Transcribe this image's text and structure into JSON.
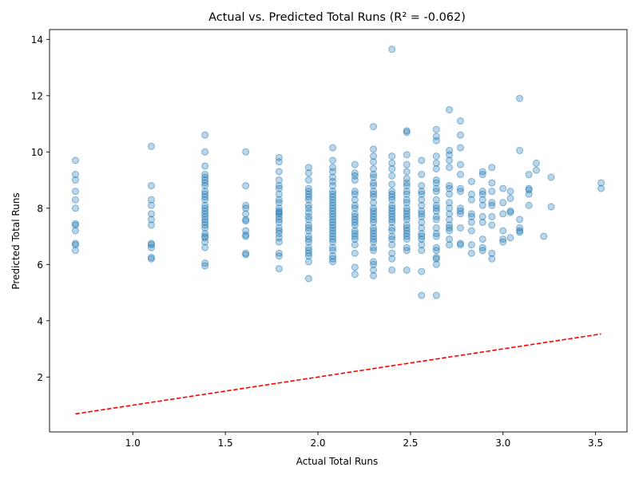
{
  "chart_data": {
    "type": "scatter",
    "title": "Actual vs. Predicted Total Runs (R² = -0.062)",
    "xlabel": "Actual Total Runs",
    "ylabel": "Predicted Total Runs",
    "xlim": [
      0.55,
      3.67
    ],
    "ylim": [
      0.05,
      14.35
    ],
    "xticks": [
      1.0,
      1.5,
      2.0,
      2.5,
      3.0,
      3.5
    ],
    "xtick_labels": [
      "1.0",
      "1.5",
      "2.0",
      "2.5",
      "3.0",
      "3.5"
    ],
    "yticks": [
      2,
      4,
      6,
      8,
      10,
      12,
      14
    ],
    "ytick_labels": [
      "2",
      "4",
      "6",
      "8",
      "10",
      "12",
      "14"
    ],
    "grid": false,
    "point_color": "#1f77b4",
    "reference_line": {
      "x": [
        0.69,
        3.53
      ],
      "y": [
        0.69,
        3.53
      ],
      "color": "#ff0000",
      "style": "dashed"
    },
    "points": [
      [
        0.69,
        9.7
      ],
      [
        0.69,
        9.2
      ],
      [
        0.69,
        9.0
      ],
      [
        0.69,
        8.6
      ],
      [
        0.69,
        8.3
      ],
      [
        0.69,
        8.0
      ],
      [
        0.69,
        7.45
      ],
      [
        0.69,
        7.4
      ],
      [
        0.69,
        7.2
      ],
      [
        0.69,
        6.75
      ],
      [
        0.69,
        6.7
      ],
      [
        0.69,
        6.5
      ],
      [
        1.1,
        10.2
      ],
      [
        1.1,
        8.8
      ],
      [
        1.1,
        8.3
      ],
      [
        1.1,
        8.1
      ],
      [
        1.1,
        7.8
      ],
      [
        1.1,
        7.6
      ],
      [
        1.1,
        7.4
      ],
      [
        1.1,
        6.75
      ],
      [
        1.1,
        6.7
      ],
      [
        1.1,
        6.6
      ],
      [
        1.1,
        6.25
      ],
      [
        1.1,
        6.2
      ],
      [
        1.39,
        10.6
      ],
      [
        1.39,
        10.0
      ],
      [
        1.39,
        9.5
      ],
      [
        1.39,
        9.2
      ],
      [
        1.39,
        9.1
      ],
      [
        1.39,
        9.0
      ],
      [
        1.39,
        8.9
      ],
      [
        1.39,
        8.8
      ],
      [
        1.39,
        8.6
      ],
      [
        1.39,
        8.5
      ],
      [
        1.39,
        8.4
      ],
      [
        1.39,
        8.3
      ],
      [
        1.39,
        8.1
      ],
      [
        1.39,
        8.0
      ],
      [
        1.39,
        7.9
      ],
      [
        1.39,
        7.8
      ],
      [
        1.39,
        7.7
      ],
      [
        1.39,
        7.6
      ],
      [
        1.39,
        7.5
      ],
      [
        1.39,
        7.4
      ],
      [
        1.39,
        7.3
      ],
      [
        1.39,
        7.1
      ],
      [
        1.39,
        7.0
      ],
      [
        1.39,
        6.95
      ],
      [
        1.39,
        6.8
      ],
      [
        1.39,
        6.6
      ],
      [
        1.39,
        6.05
      ],
      [
        1.39,
        5.95
      ],
      [
        1.61,
        10.0
      ],
      [
        1.61,
        8.8
      ],
      [
        1.61,
        8.1
      ],
      [
        1.61,
        8.0
      ],
      [
        1.61,
        7.8
      ],
      [
        1.61,
        7.6
      ],
      [
        1.61,
        7.55
      ],
      [
        1.61,
        7.2
      ],
      [
        1.61,
        7.05
      ],
      [
        1.61,
        7.0
      ],
      [
        1.61,
        6.4
      ],
      [
        1.61,
        6.35
      ],
      [
        1.79,
        9.8
      ],
      [
        1.79,
        9.65
      ],
      [
        1.79,
        9.3
      ],
      [
        1.79,
        9.0
      ],
      [
        1.79,
        8.8
      ],
      [
        1.79,
        8.7
      ],
      [
        1.79,
        8.5
      ],
      [
        1.79,
        8.3
      ],
      [
        1.79,
        8.2
      ],
      [
        1.79,
        8.0
      ],
      [
        1.79,
        7.9
      ],
      [
        1.79,
        7.85
      ],
      [
        1.79,
        7.8
      ],
      [
        1.79,
        7.7
      ],
      [
        1.79,
        7.6
      ],
      [
        1.79,
        7.5
      ],
      [
        1.79,
        7.3
      ],
      [
        1.79,
        7.2
      ],
      [
        1.79,
        7.1
      ],
      [
        1.79,
        6.95
      ],
      [
        1.79,
        6.8
      ],
      [
        1.79,
        6.4
      ],
      [
        1.79,
        6.3
      ],
      [
        1.79,
        5.85
      ],
      [
        1.95,
        9.45
      ],
      [
        1.95,
        9.25
      ],
      [
        1.95,
        9.0
      ],
      [
        1.95,
        8.7
      ],
      [
        1.95,
        8.6
      ],
      [
        1.95,
        8.5
      ],
      [
        1.95,
        8.4
      ],
      [
        1.95,
        8.3
      ],
      [
        1.95,
        8.1
      ],
      [
        1.95,
        8.0
      ],
      [
        1.95,
        7.85
      ],
      [
        1.95,
        7.7
      ],
      [
        1.95,
        7.6
      ],
      [
        1.95,
        7.4
      ],
      [
        1.95,
        7.3
      ],
      [
        1.95,
        7.2
      ],
      [
        1.95,
        7.0
      ],
      [
        1.95,
        6.9
      ],
      [
        1.95,
        6.8
      ],
      [
        1.95,
        6.6
      ],
      [
        1.95,
        6.5
      ],
      [
        1.95,
        6.4
      ],
      [
        1.95,
        6.3
      ],
      [
        1.95,
        6.1
      ],
      [
        1.95,
        5.5
      ],
      [
        2.08,
        10.15
      ],
      [
        2.08,
        9.7
      ],
      [
        2.08,
        9.45
      ],
      [
        2.08,
        9.3
      ],
      [
        2.08,
        9.1
      ],
      [
        2.08,
        8.95
      ],
      [
        2.08,
        8.8
      ],
      [
        2.08,
        8.6
      ],
      [
        2.08,
        8.5
      ],
      [
        2.08,
        8.4
      ],
      [
        2.08,
        8.3
      ],
      [
        2.08,
        8.2
      ],
      [
        2.08,
        8.1
      ],
      [
        2.08,
        8.0
      ],
      [
        2.08,
        7.9
      ],
      [
        2.08,
        7.8
      ],
      [
        2.08,
        7.7
      ],
      [
        2.08,
        7.6
      ],
      [
        2.08,
        7.5
      ],
      [
        2.08,
        7.4
      ],
      [
        2.08,
        7.3
      ],
      [
        2.08,
        7.2
      ],
      [
        2.08,
        7.1
      ],
      [
        2.08,
        7.0
      ],
      [
        2.08,
        6.9
      ],
      [
        2.08,
        6.8
      ],
      [
        2.08,
        6.6
      ],
      [
        2.08,
        6.5
      ],
      [
        2.08,
        6.3
      ],
      [
        2.08,
        6.2
      ],
      [
        2.08,
        6.1
      ],
      [
        2.2,
        9.55
      ],
      [
        2.2,
        9.25
      ],
      [
        2.2,
        9.15
      ],
      [
        2.2,
        9.0
      ],
      [
        2.2,
        8.6
      ],
      [
        2.2,
        8.5
      ],
      [
        2.2,
        8.3
      ],
      [
        2.2,
        8.1
      ],
      [
        2.2,
        8.0
      ],
      [
        2.2,
        7.8
      ],
      [
        2.2,
        7.7
      ],
      [
        2.2,
        7.6
      ],
      [
        2.2,
        7.5
      ],
      [
        2.2,
        7.4
      ],
      [
        2.2,
        7.2
      ],
      [
        2.2,
        7.1
      ],
      [
        2.2,
        7.0
      ],
      [
        2.2,
        6.9
      ],
      [
        2.2,
        6.7
      ],
      [
        2.2,
        6.4
      ],
      [
        2.2,
        5.9
      ],
      [
        2.2,
        5.65
      ],
      [
        2.3,
        10.9
      ],
      [
        2.3,
        10.1
      ],
      [
        2.3,
        9.85
      ],
      [
        2.3,
        9.65
      ],
      [
        2.3,
        9.4
      ],
      [
        2.3,
        9.2
      ],
      [
        2.3,
        9.1
      ],
      [
        2.3,
        8.9
      ],
      [
        2.3,
        8.8
      ],
      [
        2.3,
        8.6
      ],
      [
        2.3,
        8.5
      ],
      [
        2.3,
        8.4
      ],
      [
        2.3,
        8.2
      ],
      [
        2.3,
        8.0
      ],
      [
        2.3,
        7.9
      ],
      [
        2.3,
        7.8
      ],
      [
        2.3,
        7.7
      ],
      [
        2.3,
        7.6
      ],
      [
        2.3,
        7.5
      ],
      [
        2.3,
        7.3
      ],
      [
        2.3,
        7.2
      ],
      [
        2.3,
        7.1
      ],
      [
        2.3,
        7.0
      ],
      [
        2.3,
        6.9
      ],
      [
        2.3,
        6.8
      ],
      [
        2.3,
        6.6
      ],
      [
        2.3,
        6.5
      ],
      [
        2.3,
        6.1
      ],
      [
        2.3,
        6.0
      ],
      [
        2.3,
        5.8
      ],
      [
        2.3,
        5.6
      ],
      [
        2.4,
        13.65
      ],
      [
        2.4,
        9.85
      ],
      [
        2.4,
        9.6
      ],
      [
        2.4,
        9.4
      ],
      [
        2.4,
        9.15
      ],
      [
        2.4,
        8.85
      ],
      [
        2.4,
        8.6
      ],
      [
        2.4,
        8.5
      ],
      [
        2.4,
        8.4
      ],
      [
        2.4,
        8.3
      ],
      [
        2.4,
        8.1
      ],
      [
        2.4,
        8.0
      ],
      [
        2.4,
        7.9
      ],
      [
        2.4,
        7.8
      ],
      [
        2.4,
        7.7
      ],
      [
        2.4,
        7.6
      ],
      [
        2.4,
        7.5
      ],
      [
        2.4,
        7.3
      ],
      [
        2.4,
        7.2
      ],
      [
        2.4,
        7.0
      ],
      [
        2.4,
        6.9
      ],
      [
        2.4,
        6.7
      ],
      [
        2.4,
        6.4
      ],
      [
        2.4,
        6.2
      ],
      [
        2.4,
        5.8
      ],
      [
        2.48,
        10.75
      ],
      [
        2.48,
        10.7
      ],
      [
        2.48,
        9.9
      ],
      [
        2.48,
        9.55
      ],
      [
        2.48,
        9.3
      ],
      [
        2.48,
        9.05
      ],
      [
        2.48,
        8.9
      ],
      [
        2.48,
        8.8
      ],
      [
        2.48,
        8.6
      ],
      [
        2.48,
        8.5
      ],
      [
        2.48,
        8.3
      ],
      [
        2.48,
        8.2
      ],
      [
        2.48,
        8.0
      ],
      [
        2.48,
        7.9
      ],
      [
        2.48,
        7.8
      ],
      [
        2.48,
        7.7
      ],
      [
        2.48,
        7.6
      ],
      [
        2.48,
        7.4
      ],
      [
        2.48,
        7.3
      ],
      [
        2.48,
        7.2
      ],
      [
        2.48,
        7.1
      ],
      [
        2.48,
        7.0
      ],
      [
        2.48,
        6.9
      ],
      [
        2.48,
        6.6
      ],
      [
        2.48,
        6.5
      ],
      [
        2.48,
        5.8
      ],
      [
        2.56,
        9.7
      ],
      [
        2.56,
        9.2
      ],
      [
        2.56,
        8.8
      ],
      [
        2.56,
        8.6
      ],
      [
        2.56,
        8.5
      ],
      [
        2.56,
        8.3
      ],
      [
        2.56,
        8.1
      ],
      [
        2.56,
        7.9
      ],
      [
        2.56,
        7.8
      ],
      [
        2.56,
        7.7
      ],
      [
        2.56,
        7.5
      ],
      [
        2.56,
        7.3
      ],
      [
        2.56,
        7.1
      ],
      [
        2.56,
        7.0
      ],
      [
        2.56,
        6.9
      ],
      [
        2.56,
        6.7
      ],
      [
        2.56,
        6.5
      ],
      [
        2.56,
        5.75
      ],
      [
        2.56,
        4.9
      ],
      [
        2.64,
        10.8
      ],
      [
        2.64,
        10.55
      ],
      [
        2.64,
        10.4
      ],
      [
        2.64,
        9.85
      ],
      [
        2.64,
        9.6
      ],
      [
        2.64,
        9.4
      ],
      [
        2.64,
        9.0
      ],
      [
        2.64,
        8.9
      ],
      [
        2.64,
        8.7
      ],
      [
        2.64,
        8.6
      ],
      [
        2.64,
        8.3
      ],
      [
        2.64,
        8.1
      ],
      [
        2.64,
        8.0
      ],
      [
        2.64,
        7.9
      ],
      [
        2.64,
        7.7
      ],
      [
        2.64,
        7.6
      ],
      [
        2.64,
        7.3
      ],
      [
        2.64,
        7.1
      ],
      [
        2.64,
        7.0
      ],
      [
        2.64,
        6.6
      ],
      [
        2.64,
        6.5
      ],
      [
        2.64,
        6.25
      ],
      [
        2.64,
        6.2
      ],
      [
        2.64,
        6.0
      ],
      [
        2.64,
        4.9
      ],
      [
        2.71,
        11.5
      ],
      [
        2.71,
        10.05
      ],
      [
        2.71,
        9.9
      ],
      [
        2.71,
        9.7
      ],
      [
        2.71,
        9.45
      ],
      [
        2.71,
        8.8
      ],
      [
        2.71,
        8.7
      ],
      [
        2.71,
        8.5
      ],
      [
        2.71,
        8.2
      ],
      [
        2.71,
        8.0
      ],
      [
        2.71,
        7.8
      ],
      [
        2.71,
        7.6
      ],
      [
        2.71,
        7.4
      ],
      [
        2.71,
        7.3
      ],
      [
        2.71,
        7.2
      ],
      [
        2.71,
        6.9
      ],
      [
        2.71,
        6.7
      ],
      [
        2.77,
        11.1
      ],
      [
        2.77,
        10.6
      ],
      [
        2.77,
        10.15
      ],
      [
        2.77,
        9.55
      ],
      [
        2.77,
        9.2
      ],
      [
        2.77,
        8.7
      ],
      [
        2.77,
        8.6
      ],
      [
        2.77,
        8.0
      ],
      [
        2.77,
        7.9
      ],
      [
        2.77,
        7.8
      ],
      [
        2.77,
        7.3
      ],
      [
        2.77,
        6.75
      ],
      [
        2.77,
        6.7
      ],
      [
        2.83,
        8.95
      ],
      [
        2.83,
        8.5
      ],
      [
        2.83,
        8.3
      ],
      [
        2.83,
        7.8
      ],
      [
        2.83,
        7.7
      ],
      [
        2.83,
        7.5
      ],
      [
        2.83,
        7.2
      ],
      [
        2.83,
        6.7
      ],
      [
        2.83,
        6.4
      ],
      [
        2.89,
        9.3
      ],
      [
        2.89,
        9.2
      ],
      [
        2.89,
        8.6
      ],
      [
        2.89,
        8.5
      ],
      [
        2.89,
        8.3
      ],
      [
        2.89,
        8.1
      ],
      [
        2.89,
        7.7
      ],
      [
        2.89,
        7.5
      ],
      [
        2.89,
        6.9
      ],
      [
        2.89,
        6.6
      ],
      [
        2.89,
        6.5
      ],
      [
        2.94,
        9.45
      ],
      [
        2.94,
        8.9
      ],
      [
        2.94,
        8.6
      ],
      [
        2.94,
        8.2
      ],
      [
        2.94,
        8.1
      ],
      [
        2.94,
        7.7
      ],
      [
        2.94,
        7.4
      ],
      [
        2.94,
        6.4
      ],
      [
        2.94,
        6.2
      ],
      [
        3.0,
        8.7
      ],
      [
        3.0,
        8.2
      ],
      [
        3.0,
        7.8
      ],
      [
        3.0,
        7.2
      ],
      [
        3.0,
        6.9
      ],
      [
        3.0,
        6.8
      ],
      [
        3.04,
        8.6
      ],
      [
        3.04,
        8.35
      ],
      [
        3.04,
        7.9
      ],
      [
        3.04,
        7.85
      ],
      [
        3.04,
        6.95
      ],
      [
        3.09,
        11.9
      ],
      [
        3.09,
        10.05
      ],
      [
        3.09,
        7.6
      ],
      [
        3.09,
        7.3
      ],
      [
        3.09,
        7.2
      ],
      [
        3.09,
        7.15
      ],
      [
        3.14,
        9.2
      ],
      [
        3.14,
        8.7
      ],
      [
        3.14,
        8.65
      ],
      [
        3.14,
        8.5
      ],
      [
        3.14,
        8.1
      ],
      [
        3.18,
        9.6
      ],
      [
        3.18,
        9.35
      ],
      [
        3.22,
        7.0
      ],
      [
        3.26,
        9.1
      ],
      [
        3.26,
        8.05
      ],
      [
        3.53,
        8.9
      ],
      [
        3.53,
        8.7
      ]
    ]
  }
}
